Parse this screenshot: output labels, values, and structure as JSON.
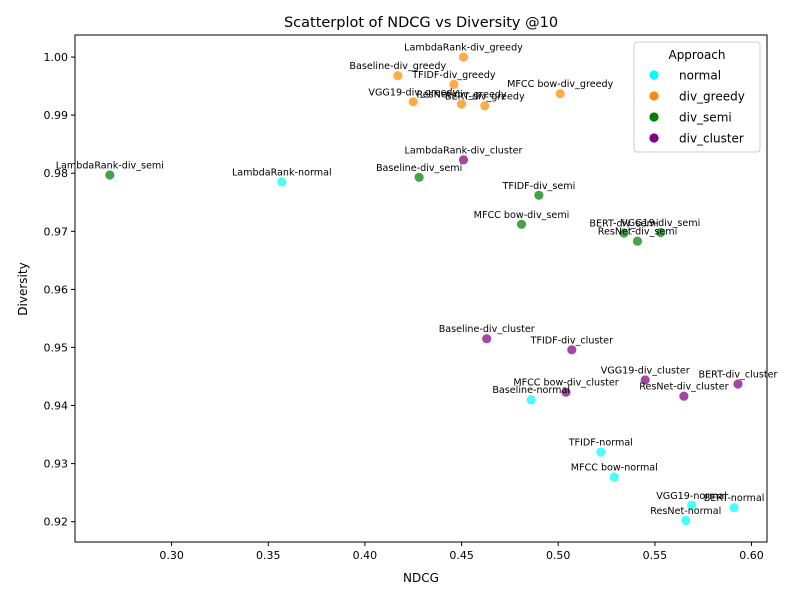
{
  "chart_data": {
    "type": "scatter",
    "title": "Scatterplot of NDCG vs Diversity @10",
    "xlabel": "NDCG",
    "ylabel": "Diversity",
    "xlim": [
      0.25,
      0.608
    ],
    "ylim": [
      0.9165,
      1.0038
    ],
    "xticks": [
      0.3,
      0.35,
      0.4,
      0.45,
      0.5,
      0.55,
      0.6
    ],
    "yticks": [
      0.92,
      0.93,
      0.94,
      0.95,
      0.96,
      0.97,
      0.98,
      0.99,
      1.0
    ],
    "grid": false,
    "legend": {
      "title": "Approach",
      "placement": "top-right"
    },
    "series": [
      {
        "name": "normal",
        "color": "#00ffff",
        "points": [
          {
            "label": "LambdaRank-normal",
            "x": 0.357,
            "y": 0.9785
          },
          {
            "label": "Baseline-normal",
            "x": 0.486,
            "y": 0.941
          },
          {
            "label": "TFIDF-normal",
            "x": 0.522,
            "y": 0.932
          },
          {
            "label": "MFCC bow-normal",
            "x": 0.529,
            "y": 0.9277
          },
          {
            "label": "VGG19-normal",
            "x": 0.569,
            "y": 0.9228
          },
          {
            "label": "BERT-normal",
            "x": 0.591,
            "y": 0.9224
          },
          {
            "label": "ResNet-normal",
            "x": 0.566,
            "y": 0.9202
          }
        ]
      },
      {
        "name": "div_greedy",
        "color": "#ff8c00",
        "points": [
          {
            "label": "LambdaRank-div_greedy",
            "x": 0.451,
            "y": 1.0
          },
          {
            "label": "Baseline-div_greedy",
            "x": 0.417,
            "y": 0.9968
          },
          {
            "label": "TFIDF-div_greedy",
            "x": 0.446,
            "y": 0.9953
          },
          {
            "label": "MFCC bow-div_greedy",
            "x": 0.501,
            "y": 0.9937
          },
          {
            "label": "VGG19-div_greedy",
            "x": 0.425,
            "y": 0.9923
          },
          {
            "label": "ResNet-div_greedy",
            "x": 0.45,
            "y": 0.9919
          },
          {
            "label": "BERT-div_greedy",
            "x": 0.462,
            "y": 0.9916
          }
        ]
      },
      {
        "name": "div_semi",
        "color": "#008000",
        "points": [
          {
            "label": "LambdaRank-div_semi",
            "x": 0.268,
            "y": 0.9797
          },
          {
            "label": "Baseline-div_semi",
            "x": 0.428,
            "y": 0.9793
          },
          {
            "label": "TFIDF-div_semi",
            "x": 0.49,
            "y": 0.9762
          },
          {
            "label": "MFCC bow-div_semi",
            "x": 0.481,
            "y": 0.9712
          },
          {
            "label": "BERT-div_semi",
            "x": 0.534,
            "y": 0.9697
          },
          {
            "label": "VGG19-div_semi",
            "x": 0.553,
            "y": 0.9698
          },
          {
            "label": "ResNet-div_semi",
            "x": 0.541,
            "y": 0.9683
          }
        ]
      },
      {
        "name": "div_cluster",
        "color": "#800080",
        "points": [
          {
            "label": "LambdaRank-div_cluster",
            "x": 0.451,
            "y": 0.9823
          },
          {
            "label": "Baseline-div_cluster",
            "x": 0.463,
            "y": 0.9515
          },
          {
            "label": "TFIDF-div_cluster",
            "x": 0.507,
            "y": 0.9496
          },
          {
            "label": "VGG19-div_cluster",
            "x": 0.545,
            "y": 0.9444
          },
          {
            "label": "BERT-div_cluster",
            "x": 0.593,
            "y": 0.9437
          },
          {
            "label": "MFCC bow-div_cluster",
            "x": 0.504,
            "y": 0.9423
          },
          {
            "label": "ResNet-div_cluster",
            "x": 0.565,
            "y": 0.9416
          }
        ]
      }
    ]
  }
}
